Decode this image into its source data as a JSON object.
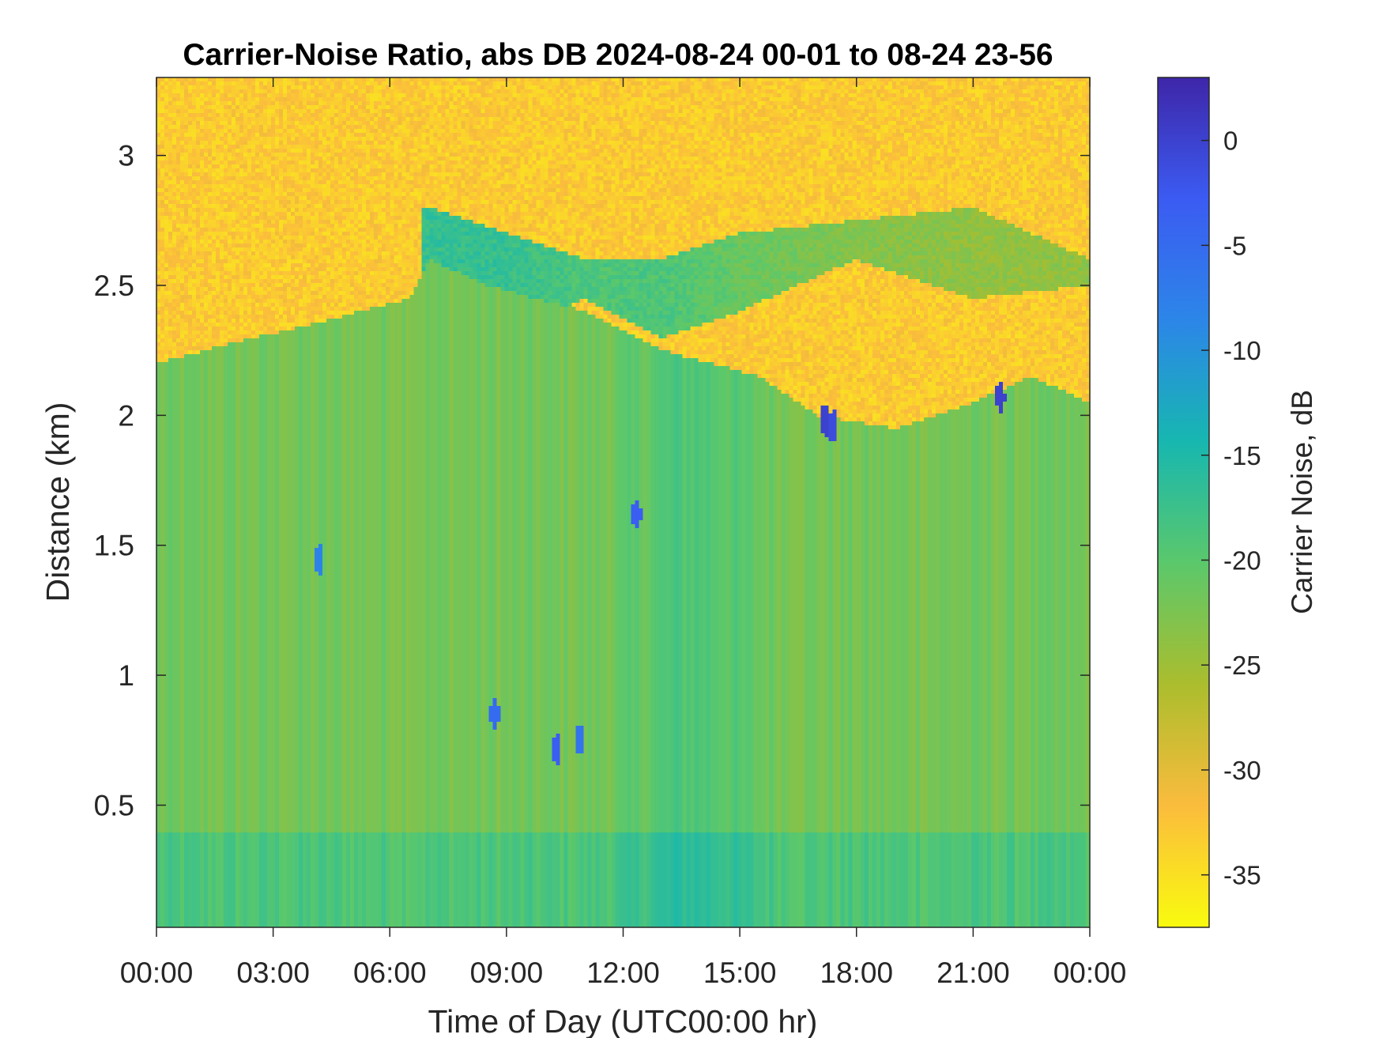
{
  "chart_data": {
    "type": "heatmap",
    "title": "Carrier-Noise Ratio, abs DB 2024-08-24 00-01 to 08-24 23-56",
    "xlabel": "Time of Day (UTC00:00 hr)",
    "ylabel": "Distance (km)",
    "x_unit": "hour",
    "xlim": [
      0,
      24
    ],
    "ylim": [
      0.03,
      3.3
    ],
    "x_ticks": [
      {
        "value": 0,
        "label": "00:00"
      },
      {
        "value": 3,
        "label": "03:00"
      },
      {
        "value": 6,
        "label": "06:00"
      },
      {
        "value": 9,
        "label": "09:00"
      },
      {
        "value": 12,
        "label": "12:00"
      },
      {
        "value": 15,
        "label": "15:00"
      },
      {
        "value": 18,
        "label": "18:00"
      },
      {
        "value": 21,
        "label": "21:00"
      },
      {
        "value": 24,
        "label": "00:00"
      }
    ],
    "y_ticks": [
      {
        "value": 0.5,
        "label": "0.5"
      },
      {
        "value": 1,
        "label": "1"
      },
      {
        "value": 1.5,
        "label": "1.5"
      },
      {
        "value": 2,
        "label": "2"
      },
      {
        "value": 2.5,
        "label": "2.5"
      },
      {
        "value": 3,
        "label": "3"
      }
    ],
    "colorbar": {
      "label": "Carrier Noise, dB",
      "range": [
        -37.5,
        3
      ],
      "ticks": [
        {
          "value": 0,
          "label": "0"
        },
        {
          "value": -5,
          "label": "-5"
        },
        {
          "value": -10,
          "label": "-10"
        },
        {
          "value": -15,
          "label": "-15"
        },
        {
          "value": -20,
          "label": "-20"
        },
        {
          "value": -25,
          "label": "-25"
        },
        {
          "value": -30,
          "label": "-30"
        },
        {
          "value": -35,
          "label": "-35"
        }
      ],
      "colormap": "parula",
      "colors": [
        "#f9fb0e",
        "#fbbc3d",
        "#abbd2d",
        "#5bc86b",
        "#17b7b0",
        "#2c86e8",
        "#3b5bf2",
        "#3e26a8"
      ]
    },
    "field_summary": {
      "noise_floor_db": -33,
      "signal_layer_db": -22,
      "mixing_layer_top_km": [
        {
          "x": 0,
          "y": 2.2
        },
        {
          "x": 2,
          "y": 2.28
        },
        {
          "x": 4,
          "y": 2.35
        },
        {
          "x": 6.5,
          "y": 2.45
        },
        {
          "x": 7,
          "y": 2.6
        },
        {
          "x": 8.5,
          "y": 2.5
        },
        {
          "x": 11,
          "y": 2.4
        },
        {
          "x": 13,
          "y": 2.25
        },
        {
          "x": 15.5,
          "y": 2.15
        },
        {
          "x": 17,
          "y": 2.0
        },
        {
          "x": 19,
          "y": 1.95
        },
        {
          "x": 21,
          "y": 2.05
        },
        {
          "x": 22.5,
          "y": 2.15
        },
        {
          "x": 24,
          "y": 2.05
        }
      ],
      "residual_layer": [
        {
          "x": 7,
          "y_bottom": 2.3,
          "y_top": 2.8,
          "value_db": -17
        },
        {
          "x": 9,
          "y_bottom": 2.3,
          "y_top": 2.7,
          "value_db": -17
        },
        {
          "x": 11,
          "y_bottom": 2.45,
          "y_top": 2.6,
          "value_db": -19
        },
        {
          "x": 13,
          "y_bottom": 2.3,
          "y_top": 2.6,
          "value_db": -19
        },
        {
          "x": 15,
          "y_bottom": 2.4,
          "y_top": 2.7,
          "value_db": -21
        },
        {
          "x": 18,
          "y_bottom": 2.6,
          "y_top": 2.75,
          "value_db": -23
        },
        {
          "x": 21,
          "y_bottom": 2.45,
          "y_top": 2.8,
          "value_db": -24
        },
        {
          "x": 24,
          "y_bottom": 2.5,
          "y_top": 2.6,
          "value_db": -24
        }
      ],
      "strong_returns": [
        {
          "x": 4.2,
          "y": 1.45,
          "value_db": -8
        },
        {
          "x": 8.7,
          "y": 0.85,
          "value_db": -5
        },
        {
          "x": 10.3,
          "y": 0.72,
          "value_db": -3
        },
        {
          "x": 10.9,
          "y": 0.75,
          "value_db": -6
        },
        {
          "x": 12.35,
          "y": 1.62,
          "value_db": -3
        },
        {
          "x": 17.2,
          "y": 1.98,
          "value_db": 0
        },
        {
          "x": 17.4,
          "y": 1.96,
          "value_db": -1
        },
        {
          "x": 21.7,
          "y": 2.07,
          "value_db": 0
        }
      ]
    }
  }
}
